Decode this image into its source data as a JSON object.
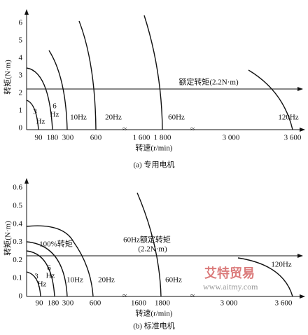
{
  "top": {
    "caption": "(a) 专用电机",
    "y_label": "转矩(N·m)",
    "x_label": "转速(r/min)",
    "y_ticks": [
      "0",
      "1",
      "2",
      "3",
      "4",
      "5",
      "6"
    ],
    "x_ticks": [
      "90",
      "180",
      "300",
      "600",
      "1 600",
      "1 800",
      "3 000",
      "3 600"
    ],
    "curves": [
      "3",
      "Hz",
      "6",
      "Hz",
      "10Hz",
      "20Hz",
      "60Hz",
      "120Hz"
    ],
    "rated": "额定转矩(2.2N·m)"
  },
  "bottom": {
    "caption": "(b) 标准电机",
    "y_label": "转矩(N·m)",
    "x_label": "转速(r/min)",
    "y_ticks": [
      "0",
      "0.1",
      "0.2",
      "0.3",
      "0.4",
      "0.5",
      "0.6"
    ],
    "x_ticks": [
      "90",
      "180",
      "300",
      "600",
      "1600",
      "1800",
      "3 000",
      "3 600"
    ],
    "curves": [
      "3",
      "Hz",
      "6",
      "Hz",
      "10Hz",
      "20Hz",
      "60Hz",
      "120Hz"
    ],
    "full_torque": "100%转矩",
    "rated": [
      "60Hz额定转矩",
      "(2.2N·m)"
    ]
  },
  "watermark": [
    "艾特贸易",
    "www.aitmy.com"
  ]
}
